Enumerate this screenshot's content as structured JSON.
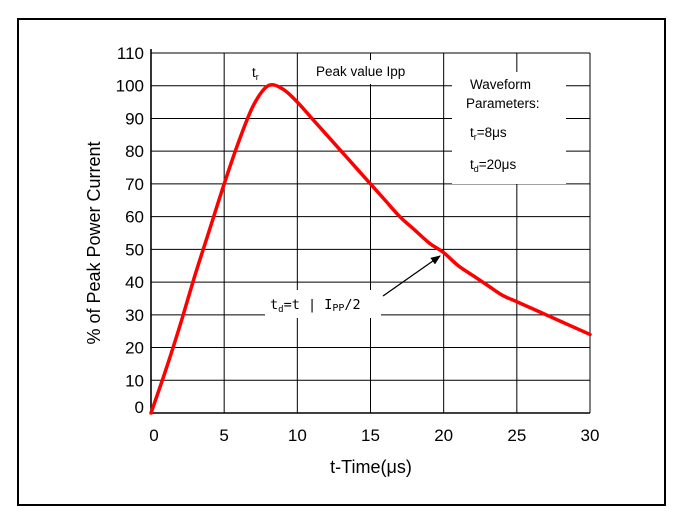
{
  "chart_data": {
    "type": "line",
    "title": "",
    "xlabel": "t-Time(μs)",
    "ylabel": "% of Peak Power Current",
    "xlim": [
      0,
      30
    ],
    "ylim": [
      0,
      110
    ],
    "x_ticks": [
      0,
      5,
      10,
      15,
      20,
      25,
      30
    ],
    "y_ticks": [
      0,
      10,
      20,
      30,
      40,
      50,
      60,
      70,
      80,
      90,
      100,
      110
    ],
    "grid": true,
    "series": [
      {
        "color": "#ff0000",
        "x": [
          0,
          1,
          2,
          3,
          4,
          5,
          6,
          7,
          8,
          9,
          10,
          11,
          12,
          13,
          14,
          15,
          16,
          17,
          18,
          19,
          20,
          21,
          22,
          23,
          24,
          25,
          26,
          27,
          28,
          29,
          30
        ],
        "y": [
          0,
          13,
          27,
          42,
          56,
          70,
          83,
          94,
          100,
          99,
          95,
          90,
          85,
          80,
          75,
          70,
          65,
          60,
          56,
          52,
          49,
          45,
          42,
          39,
          36,
          34,
          32,
          30,
          28,
          26,
          24
        ]
      }
    ],
    "annotations": {
      "tr_label": {
        "main": "t",
        "sub": "r"
      },
      "peak_label": "Peak value Ipp",
      "waveform_title_1": "Waveform",
      "waveform_title_2": "Parameters:",
      "tr_param": {
        "main": "t",
        "sub": "r",
        "rest": "=8μs"
      },
      "td_param": {
        "main": "t",
        "sub": "d",
        "rest": "=20μs"
      },
      "td_eq": {
        "main": "t",
        "sub": "d",
        "mid": "=t | I",
        "sub2": "PP",
        "rest": "/2"
      }
    }
  }
}
